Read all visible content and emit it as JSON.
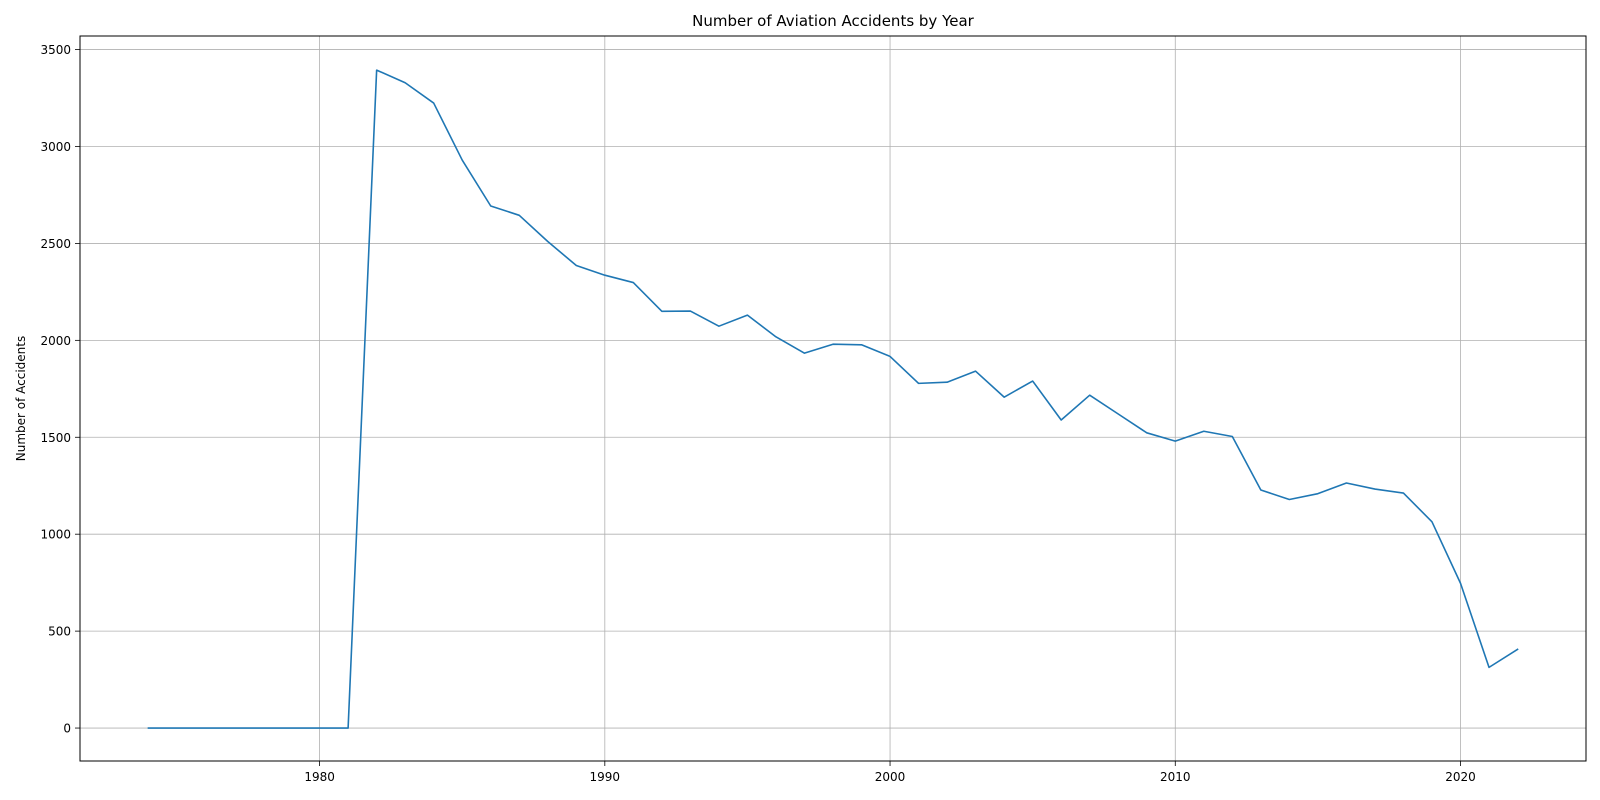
{
  "chart_data": {
    "type": "line",
    "title": "Number of Aviation Accidents by Year",
    "xlabel": "",
    "ylabel": "Number of Accidents",
    "xlim": [
      1971.6,
      2024.4
    ],
    "ylim": [
      -170,
      3570
    ],
    "xticks": [
      1980,
      1990,
      2000,
      2010,
      2020
    ],
    "yticks": [
      0,
      500,
      1000,
      1500,
      2000,
      2500,
      3000,
      3500
    ],
    "grid": true,
    "color": "#1f77b4",
    "series": [
      {
        "x": [
          1974,
          1975,
          1976,
          1977,
          1978,
          1979,
          1980,
          1981,
          1982,
          1983,
          1984,
          1985,
          1986,
          1987,
          1988,
          1989,
          1990,
          1991,
          1992,
          1993,
          1994,
          1995,
          1996,
          1997,
          1998,
          1999,
          2000,
          2001,
          2002,
          2003,
          2004,
          2005,
          2006,
          2007,
          2008,
          2009,
          2010,
          2011,
          2012,
          2013,
          2014,
          2015,
          2016,
          2017,
          2018,
          2019,
          2020,
          2021,
          2022
        ],
        "values": [
          0,
          0,
          0,
          0,
          0,
          0,
          0,
          0,
          3394,
          3329,
          3224,
          2930,
          2693,
          2645,
          2510,
          2386,
          2336,
          2298,
          2150,
          2151,
          2073,
          2130,
          2018,
          1934,
          1980,
          1977,
          1917,
          1778,
          1784,
          1841,
          1707,
          1790,
          1589,
          1717,
          1620,
          1523,
          1480,
          1531,
          1504,
          1228,
          1179,
          1209,
          1264,
          1233,
          1212,
          1064,
          747,
          313,
          406
        ]
      }
    ]
  }
}
